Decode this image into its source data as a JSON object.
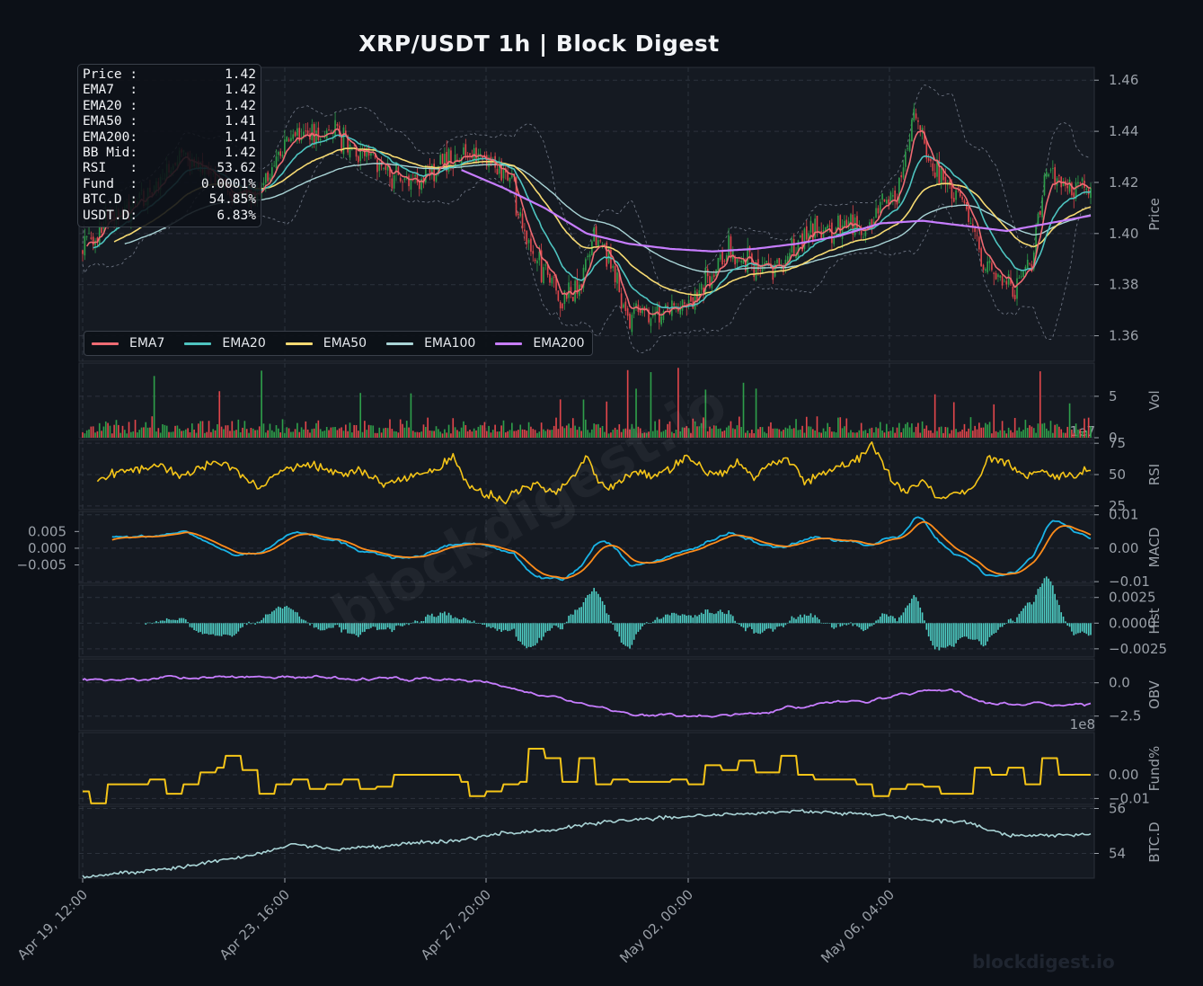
{
  "header": {
    "title": "XRP/USDT  1h  |  Block Digest"
  },
  "watermark": {
    "main": "blockdigest.io",
    "corner": "blockdigest.io"
  },
  "info_box": [
    {
      "label": "Price :",
      "value": "1.42"
    },
    {
      "label": "EMA7  :",
      "value": "1.42"
    },
    {
      "label": "EMA20 :",
      "value": "1.42"
    },
    {
      "label": "EMA50 :",
      "value": "1.41"
    },
    {
      "label": "EMA200:",
      "value": "1.41"
    },
    {
      "label": "BB Mid:",
      "value": "1.42"
    },
    {
      "label": "RSI   :",
      "value": "53.62"
    },
    {
      "label": "Fund  :",
      "value": "0.0001%"
    },
    {
      "label": "BTC.D :",
      "value": "54.85%"
    },
    {
      "label": "USDT.D:",
      "value": "6.83%"
    }
  ],
  "colors": {
    "background": "#0c1017",
    "panel": "#151a22",
    "grid": "#2c323c",
    "axis_text": "#9aa0a8",
    "candle_up": "#2e9e4a",
    "candle_down": "#e0464b",
    "ema7": "#ef6b73",
    "ema20": "#4ec4c0",
    "ema50": "#f6da72",
    "ema100": "#a9d4d6",
    "ema200": "#c77dff",
    "rsi": "#f5c518",
    "macd": "#1ab3e6",
    "signal": "#ff8c1a",
    "hist": "#4ecdc4",
    "obv": "#c77dff",
    "fund": "#f5c518",
    "btcd": "#a9d4d6",
    "bb": "#6b7280"
  },
  "chart_data": {
    "type": "line",
    "x_ticks": [
      "Apr 19, 12:00",
      "Apr 23, 16:00",
      "Apr 27, 20:00",
      "May 02, 00:00",
      "May 06, 04:00"
    ],
    "legend": [
      "EMA7",
      "EMA20",
      "EMA50",
      "EMA100",
      "EMA200"
    ],
    "panels": [
      {
        "name": "price",
        "ylabel": "Price",
        "ylim": [
          1.35,
          1.465
        ],
        "ticks": [
          "1.36",
          "1.38",
          "1.40",
          "1.42",
          "1.44",
          "1.46"
        ]
      },
      {
        "name": "volume",
        "ylabel": "Vol",
        "ylim": [
          0,
          9
        ],
        "ticks": [
          "0",
          "5"
        ],
        "offset_label": "1e7"
      },
      {
        "name": "rsi",
        "ylabel": "RSI",
        "ylim": [
          22,
          78
        ],
        "ticks": [
          "25",
          "50",
          "75"
        ]
      },
      {
        "name": "macd",
        "ylabel": "MACD",
        "ylim": [
          -0.0105,
          0.011
        ],
        "ticks": [
          "0.01",
          "0.00",
          "−0.01"
        ],
        "left_ticks": [
          "0.005",
          "0.000",
          "−0.005"
        ]
      },
      {
        "name": "hist",
        "ylabel": "Hist",
        "ylim": [
          -0.0033,
          0.0037
        ],
        "ticks": [
          "0.0025",
          "0.0000",
          "−0.0025"
        ]
      },
      {
        "name": "obv",
        "ylabel": "OBV",
        "ylim": [
          -3.6,
          1.8
        ],
        "ticks": [
          "0.0",
          "−2.5"
        ],
        "offset_label": "1e8"
      },
      {
        "name": "fund",
        "ylabel": "Fund%",
        "ylim": [
          -0.0125,
          0.0178
        ],
        "ticks": [
          "0.00",
          "−0.01"
        ]
      },
      {
        "name": "btcd",
        "ylabel": "BTC.D",
        "ylim": [
          52.9,
          56.1
        ],
        "ticks": [
          "54",
          "56"
        ]
      }
    ],
    "series_keypoints": {
      "close": [
        [
          0,
          1.395
        ],
        [
          3,
          1.405
        ],
        [
          6,
          1.41
        ],
        [
          9,
          1.42
        ],
        [
          12,
          1.43
        ],
        [
          15,
          1.425
        ],
        [
          18,
          1.415
        ],
        [
          21,
          1.415
        ],
        [
          24,
          1.435
        ],
        [
          27,
          1.44
        ],
        [
          30,
          1.44
        ],
        [
          33,
          1.43
        ],
        [
          36,
          1.425
        ],
        [
          39,
          1.42
        ],
        [
          42,
          1.425
        ],
        [
          45,
          1.43
        ],
        [
          48,
          1.43
        ],
        [
          51,
          1.42
        ],
        [
          53,
          1.395
        ],
        [
          55,
          1.385
        ],
        [
          57,
          1.375
        ],
        [
          59,
          1.38
        ],
        [
          61,
          1.4
        ],
        [
          63,
          1.39
        ],
        [
          65,
          1.365
        ],
        [
          67,
          1.37
        ],
        [
          69,
          1.368
        ],
        [
          71,
          1.37
        ],
        [
          73,
          1.375
        ],
        [
          75,
          1.385
        ],
        [
          77,
          1.395
        ],
        [
          79,
          1.39
        ],
        [
          81,
          1.385
        ],
        [
          83,
          1.387
        ],
        [
          85,
          1.395
        ],
        [
          87,
          1.402
        ],
        [
          89,
          1.4
        ],
        [
          91,
          1.404
        ],
        [
          93,
          1.4
        ],
        [
          95,
          1.41
        ],
        [
          97,
          1.415
        ],
        [
          99,
          1.45
        ],
        [
          101,
          1.425
        ],
        [
          103,
          1.42
        ],
        [
          105,
          1.41
        ],
        [
          107,
          1.39
        ],
        [
          109,
          1.382
        ],
        [
          111,
          1.38
        ],
        [
          113,
          1.39
        ],
        [
          115,
          1.425
        ],
        [
          117,
          1.42
        ],
        [
          119,
          1.417
        ],
        [
          120,
          1.418
        ]
      ],
      "ema200": [
        [
          45,
          1.425
        ],
        [
          50,
          1.418
        ],
        [
          55,
          1.41
        ],
        [
          60,
          1.4
        ],
        [
          65,
          1.396
        ],
        [
          70,
          1.394
        ],
        [
          75,
          1.393
        ],
        [
          80,
          1.394
        ],
        [
          85,
          1.396
        ],
        [
          90,
          1.399
        ],
        [
          95,
          1.404
        ],
        [
          100,
          1.405
        ],
        [
          105,
          1.403
        ],
        [
          110,
          1.401
        ],
        [
          115,
          1.404
        ],
        [
          120,
          1.407
        ]
      ],
      "rsi": [
        [
          0,
          40
        ],
        [
          3,
          50
        ],
        [
          6,
          55
        ],
        [
          9,
          58
        ],
        [
          12,
          48
        ],
        [
          15,
          60
        ],
        [
          18,
          56
        ],
        [
          21,
          38
        ],
        [
          24,
          55
        ],
        [
          27,
          58
        ],
        [
          30,
          50
        ],
        [
          33,
          52
        ],
        [
          36,
          42
        ],
        [
          39,
          48
        ],
        [
          42,
          52
        ],
        [
          44,
          65
        ],
        [
          46,
          40
        ],
        [
          48,
          35
        ],
        [
          50,
          30
        ],
        [
          52,
          38
        ],
        [
          54,
          42
        ],
        [
          56,
          35
        ],
        [
          58,
          45
        ],
        [
          60,
          65
        ],
        [
          62,
          38
        ],
        [
          64,
          45
        ],
        [
          66,
          52
        ],
        [
          68,
          48
        ],
        [
          70,
          55
        ],
        [
          72,
          65
        ],
        [
          74,
          52
        ],
        [
          76,
          50
        ],
        [
          78,
          60
        ],
        [
          80,
          45
        ],
        [
          82,
          60
        ],
        [
          84,
          62
        ],
        [
          86,
          45
        ],
        [
          88,
          52
        ],
        [
          90,
          55
        ],
        [
          92,
          60
        ],
        [
          94,
          75
        ],
        [
          96,
          50
        ],
        [
          98,
          35
        ],
        [
          100,
          45
        ],
        [
          102,
          32
        ],
        [
          104,
          35
        ],
        [
          106,
          38
        ],
        [
          108,
          65
        ],
        [
          110,
          60
        ],
        [
          112,
          48
        ],
        [
          114,
          54
        ],
        [
          116,
          50
        ],
        [
          118,
          50
        ],
        [
          120,
          54
        ]
      ],
      "btcd": [
        [
          0,
          52.95
        ],
        [
          10,
          53.3
        ],
        [
          20,
          53.9
        ],
        [
          25,
          54.4
        ],
        [
          30,
          54.2
        ],
        [
          35,
          54.3
        ],
        [
          40,
          54.5
        ],
        [
          45,
          54.6
        ],
        [
          50,
          54.9
        ],
        [
          55,
          55.0
        ],
        [
          60,
          55.3
        ],
        [
          65,
          55.5
        ],
        [
          70,
          55.6
        ],
        [
          75,
          55.7
        ],
        [
          80,
          55.8
        ],
        [
          85,
          55.9
        ],
        [
          90,
          55.8
        ],
        [
          95,
          55.7
        ],
        [
          100,
          55.5
        ],
        [
          105,
          55.4
        ],
        [
          110,
          54.8
        ],
        [
          115,
          54.8
        ],
        [
          120,
          54.85
        ]
      ]
    },
    "fund_levels": [
      [
        0,
        -0.007
      ],
      [
        1,
        -0.012
      ],
      [
        3,
        -0.004
      ],
      [
        6,
        -0.004
      ],
      [
        8,
        -0.002
      ],
      [
        10,
        -0.008
      ],
      [
        12,
        -0.004
      ],
      [
        14,
        0.001
      ],
      [
        16,
        0.003
      ],
      [
        17,
        0.008
      ],
      [
        19,
        0.002
      ],
      [
        21,
        -0.008
      ],
      [
        23,
        -0.004
      ],
      [
        25,
        -0.002
      ],
      [
        27,
        -0.006
      ],
      [
        29,
        -0.004
      ],
      [
        31,
        -0.002
      ],
      [
        33,
        -0.006
      ],
      [
        35,
        -0.005
      ],
      [
        37,
        0.0
      ],
      [
        40,
        0.0
      ],
      [
        43,
        0.0
      ],
      [
        45,
        -0.003
      ],
      [
        46,
        -0.009
      ],
      [
        48,
        -0.007
      ],
      [
        50,
        -0.004
      ],
      [
        52,
        -0.003
      ],
      [
        53,
        0.011
      ],
      [
        55,
        0.007
      ],
      [
        57,
        -0.003
      ],
      [
        59,
        0.007
      ],
      [
        61,
        -0.004
      ],
      [
        63,
        -0.002
      ],
      [
        65,
        -0.003
      ],
      [
        68,
        -0.003
      ],
      [
        70,
        -0.002
      ],
      [
        72,
        -0.004
      ],
      [
        74,
        0.004
      ],
      [
        76,
        0.002
      ],
      [
        78,
        0.006
      ],
      [
        80,
        0.001
      ],
      [
        83,
        0.008
      ],
      [
        85,
        0.0
      ],
      [
        87,
        -0.002
      ],
      [
        89,
        -0.002
      ],
      [
        92,
        -0.004
      ],
      [
        94,
        -0.009
      ],
      [
        96,
        -0.006
      ],
      [
        98,
        -0.004
      ],
      [
        100,
        -0.005
      ],
      [
        102,
        -0.008
      ],
      [
        104,
        -0.008
      ],
      [
        106,
        0.003
      ],
      [
        108,
        0.0
      ],
      [
        110,
        0.003
      ],
      [
        112,
        -0.004
      ],
      [
        114,
        0.007
      ],
      [
        116,
        0.0
      ],
      [
        118,
        0.0
      ],
      [
        120,
        0.0
      ]
    ]
  }
}
